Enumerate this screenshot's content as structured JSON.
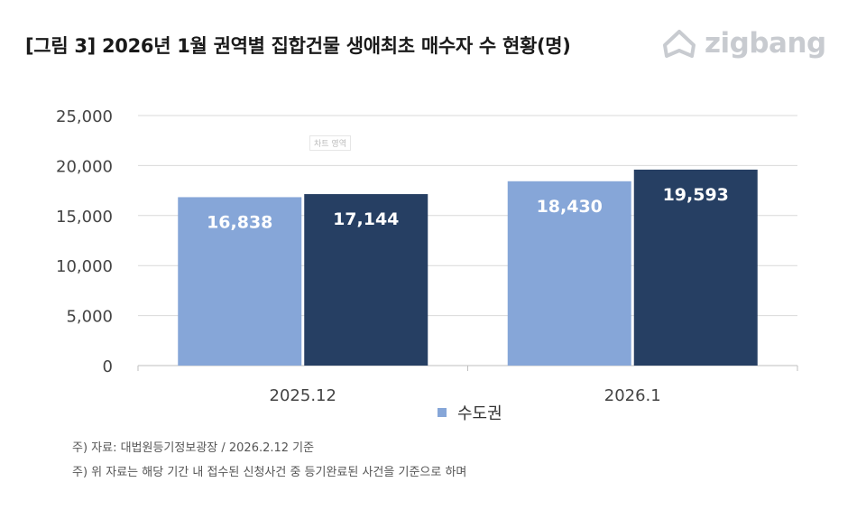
{
  "title": "[그림 3] 2026년 1월 권역별 집합건물 생애최초 매수자 수 현황(명)",
  "logo": {
    "text": "zigbang",
    "icon": "zigbang-house-icon"
  },
  "watermark": "차트 영역",
  "notes": [
    "주) 자료: 대법원등기정보광장 / 2026.2.12 기준",
    "주) 위 자료는 해당 기간 내 접수된 신청사건 중 등기완료된 사건을 기준으로 하며"
  ],
  "colors": {
    "series1": "#86a6d8",
    "series2": "#263f63",
    "grid": "#d9d9d9",
    "axis": "#bfbfbf"
  },
  "chart_data": {
    "type": "bar",
    "categories": [
      "2025.12",
      "2026.1"
    ],
    "series": [
      {
        "name": "수도권",
        "values": [
          16838,
          18430
        ]
      },
      {
        "values": [
          17144,
          19593
        ]
      }
    ],
    "value_labels": [
      [
        "16,838",
        "18,430"
      ],
      [
        "17,144",
        "19,593"
      ]
    ],
    "ylim": [
      0,
      25000
    ],
    "yticks": [
      "0",
      "5,000",
      "10,000",
      "15,000",
      "20,000",
      "25,000"
    ],
    "grid": true,
    "legend": "bottom"
  }
}
